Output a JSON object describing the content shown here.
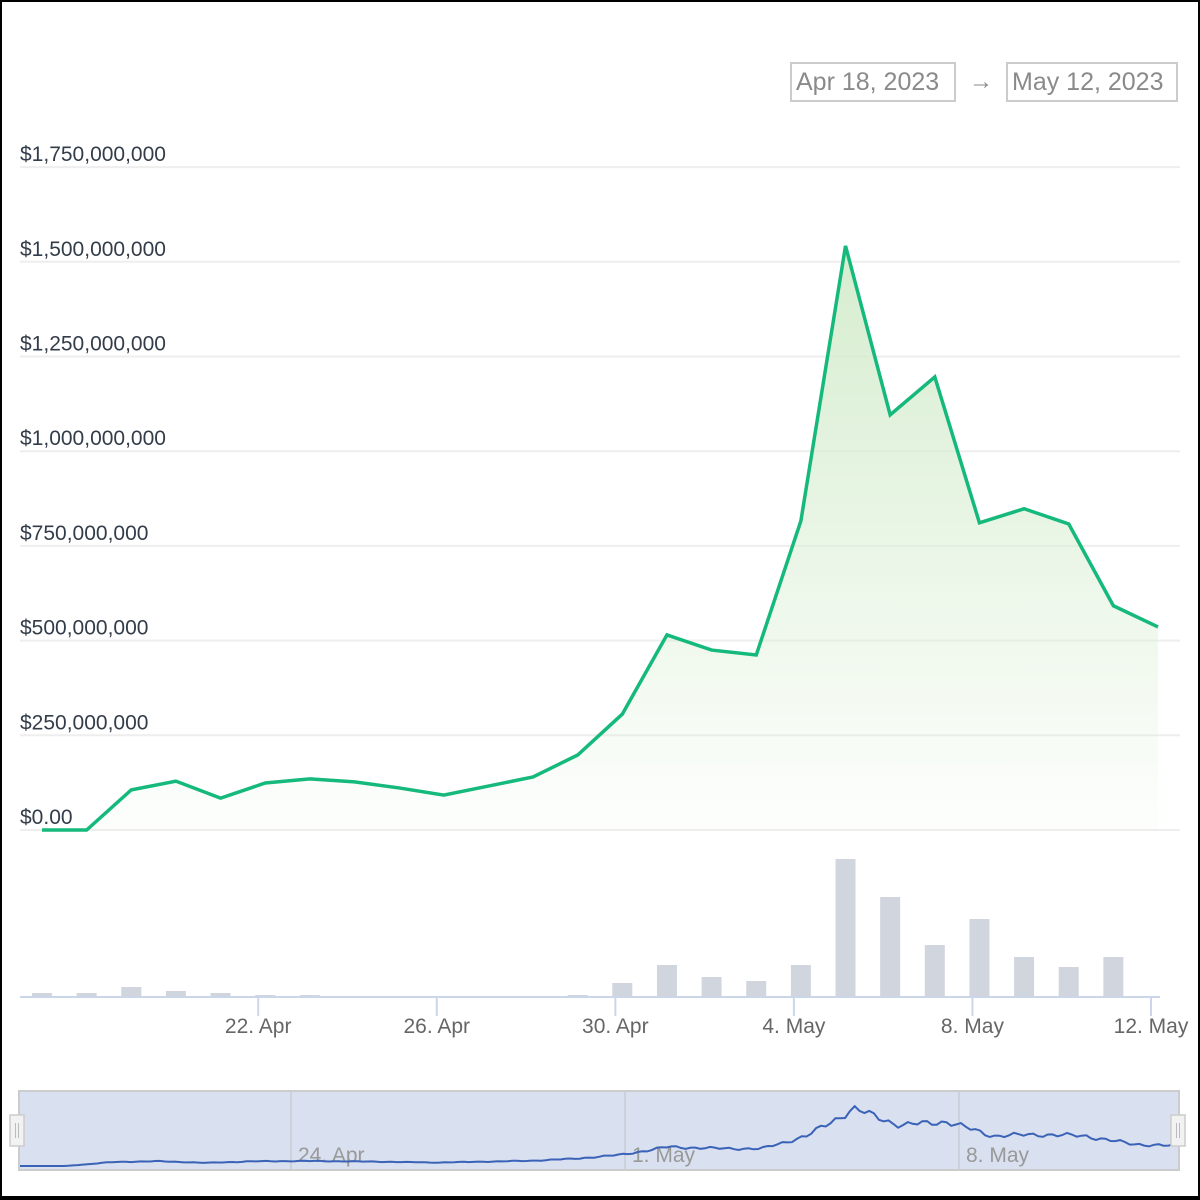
{
  "range_selector": {
    "from": "Apr 18, 2023",
    "arrow": "→",
    "to": "May 12, 2023"
  },
  "colors": {
    "line": "#16b97c",
    "area_top": "#d6edcf",
    "bars": "#d1d5dd",
    "grid": "#eeeeee",
    "axis": "#ccd6eb",
    "navigator_fill": "#d9e0ef",
    "navigator_line": "#3a63b8"
  },
  "chart_data": {
    "type": "area",
    "title": "",
    "xlabel": "",
    "ylabel": "",
    "ylim": [
      0,
      1750000000
    ],
    "grid": true,
    "y_ticks": [
      "$0.00",
      "$250,000,000",
      "$500,000,000",
      "$750,000,000",
      "$1,000,000,000",
      "$1,250,000,000",
      "$1,500,000,000",
      "$1,750,000,000"
    ],
    "x_ticks": [
      "22. Apr",
      "26. Apr",
      "30. Apr",
      "4. May",
      "8. May",
      "12. May"
    ],
    "x": [
      "Apr 17",
      "Apr 18",
      "Apr 19",
      "Apr 20",
      "Apr 21",
      "Apr 22",
      "Apr 23",
      "Apr 24",
      "Apr 25",
      "Apr 26",
      "Apr 27",
      "Apr 28",
      "Apr 29",
      "Apr 30",
      "May 1",
      "May 2",
      "May 3",
      "May 4",
      "May 5",
      "May 6",
      "May 7",
      "May 8",
      "May 9",
      "May 10",
      "May 11",
      "May 12"
    ],
    "series": [
      {
        "name": "Market Cap",
        "type": "area",
        "values": [
          0,
          0,
          106000000,
          129000000,
          84000000,
          124000000,
          135000000,
          127000000,
          111000000,
          92000000,
          116000000,
          140000000,
          198000000,
          306000000,
          515000000,
          475000000,
          462000000,
          816000000,
          1542000000,
          1096000000,
          1196000000,
          811000000,
          848000000,
          808000000,
          592000000,
          536000000
        ]
      },
      {
        "name": "Volume",
        "type": "bar",
        "relative_heights": [
          4,
          4,
          10,
          6,
          4,
          2,
          2,
          0,
          0,
          0,
          0,
          0,
          2,
          14,
          32,
          20,
          16,
          32,
          138,
          100,
          52,
          78,
          40,
          30,
          40,
          0
        ]
      }
    ],
    "navigator": {
      "x_ticks": [
        "24. Apr",
        "1. May",
        "8. May"
      ]
    }
  }
}
